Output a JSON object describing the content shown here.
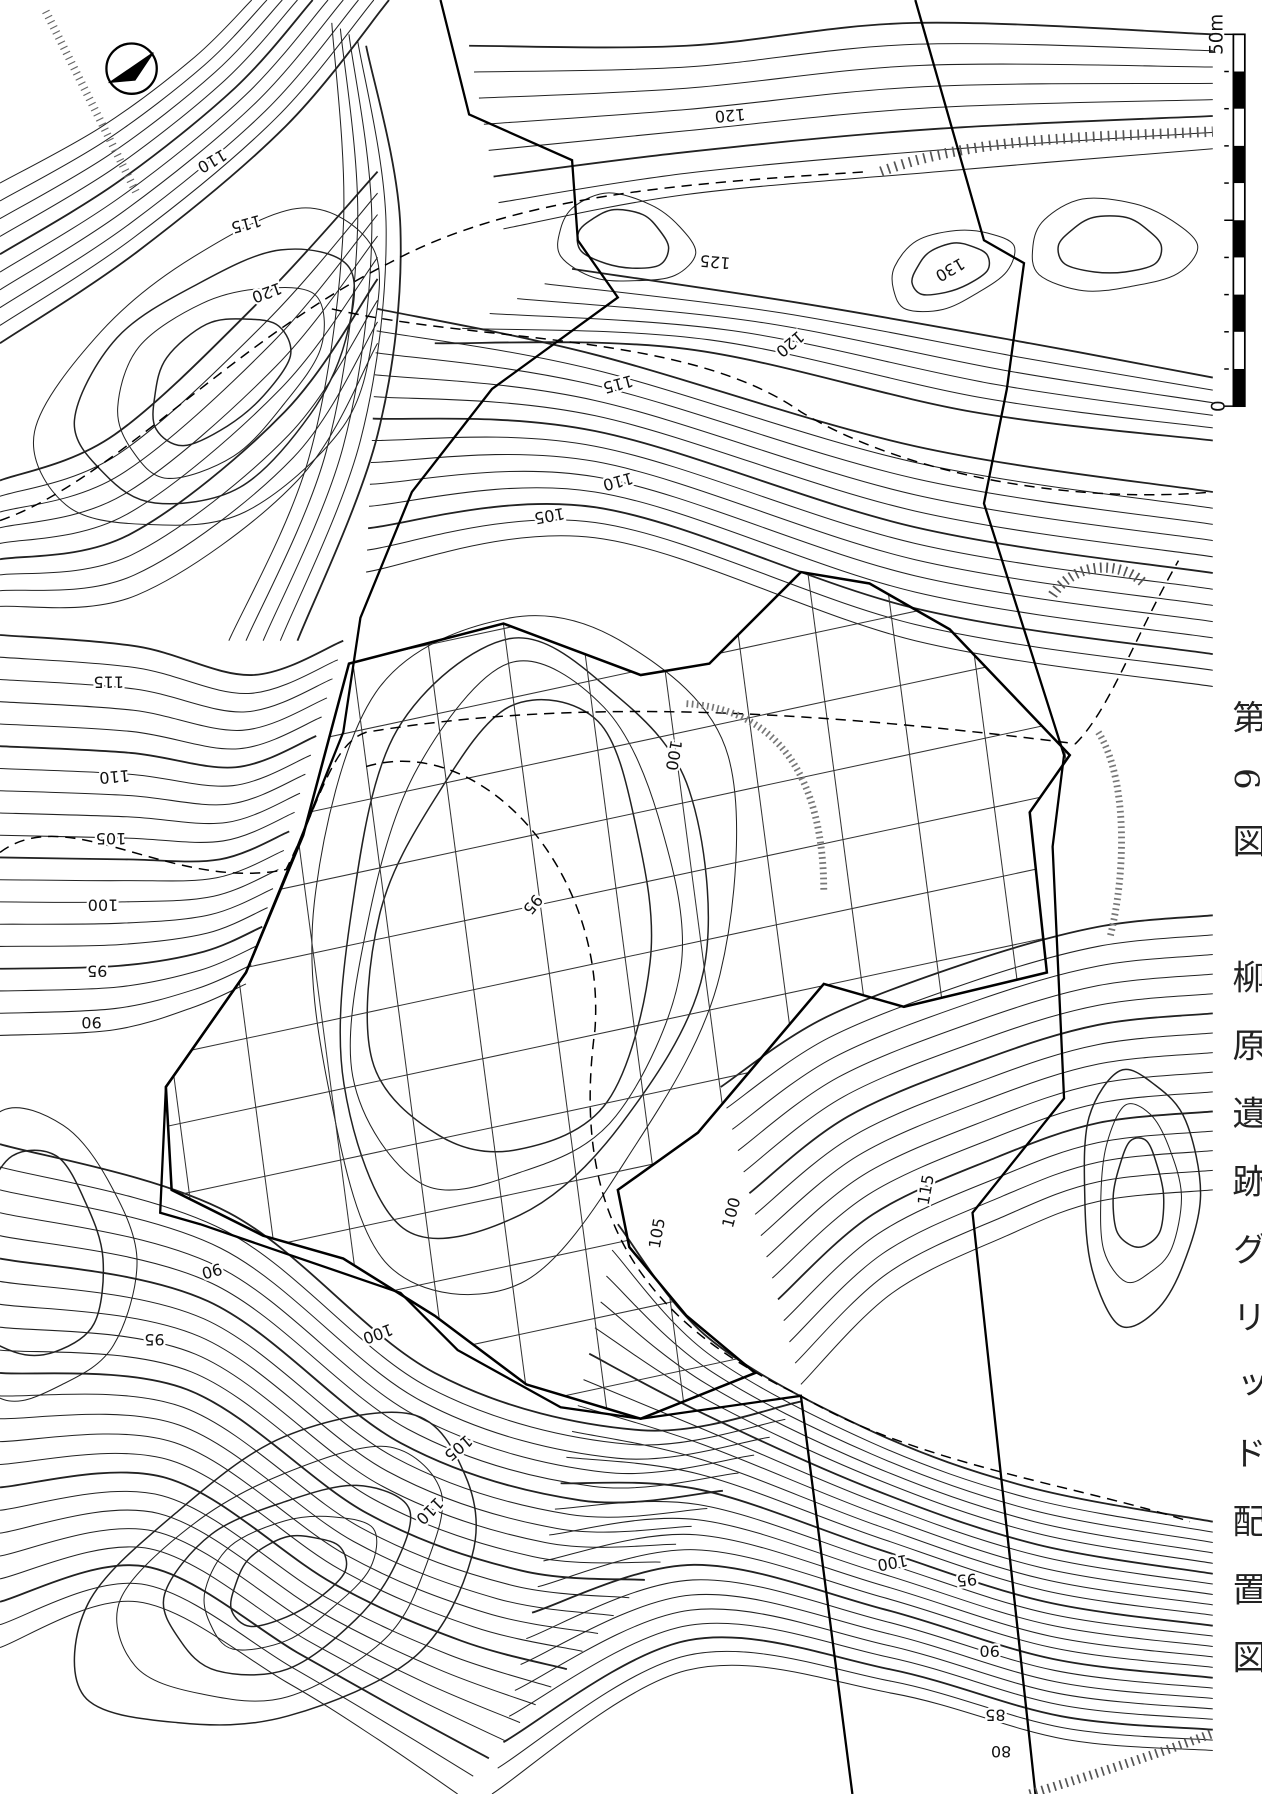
{
  "caption": "第6図　柳原遺跡グリッド配置図",
  "scale_bar": {
    "start": "0",
    "end": "50m"
  },
  "contour_labels": [
    "110",
    "115",
    "120",
    "120",
    "125",
    "130",
    "120",
    "115",
    "110",
    "105",
    "115",
    "110",
    "105",
    "100",
    "95",
    "90",
    "100",
    "95",
    "115",
    "100",
    "105",
    "90",
    "95",
    "100",
    "105",
    "110",
    "100",
    "95",
    "90",
    "85",
    "80"
  ]
}
